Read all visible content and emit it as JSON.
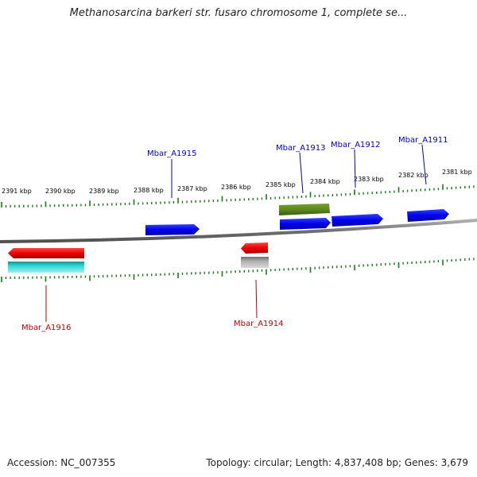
{
  "title": "Methanosarcina barkeri str. fusaro chromosome 1, complete se...",
  "footer": {
    "accession": "Accession: NC_007355",
    "summary": "Topology: circular; Length: 4,837,408 bp; Genes: 3,679"
  },
  "scale_labels": [
    "2391 kbp",
    "2390 kbp",
    "2389 kbp",
    "2388 kbp",
    "2387 kbp",
    "2386 kbp",
    "2385 kbp",
    "2384 kbp",
    "2383 kbp",
    "2382 kbp",
    "2381 kbp"
  ],
  "gene_labels": [
    {
      "text": "Mbar_A1915",
      "color": "#0000cc"
    },
    {
      "text": "Mbar_A1913",
      "color": "#0000cc"
    },
    {
      "text": "Mbar_A1912",
      "color": "#0000cc"
    },
    {
      "text": "Mbar_A1911",
      "color": "#0000cc"
    },
    {
      "text": "Mbar_A1916",
      "color": "#cc0000"
    },
    {
      "text": "Mbar_A1914",
      "color": "#cc0000"
    }
  ],
  "colors": {
    "forward_gene": "#0000ee",
    "reverse_gene": "#ee0000",
    "tick": "#1a7a1a",
    "backbone": "#808080",
    "rna_feature": "#5a8a1a",
    "cyan_feature": "#20c8c8",
    "gray_feature": "#a0a0a0"
  }
}
